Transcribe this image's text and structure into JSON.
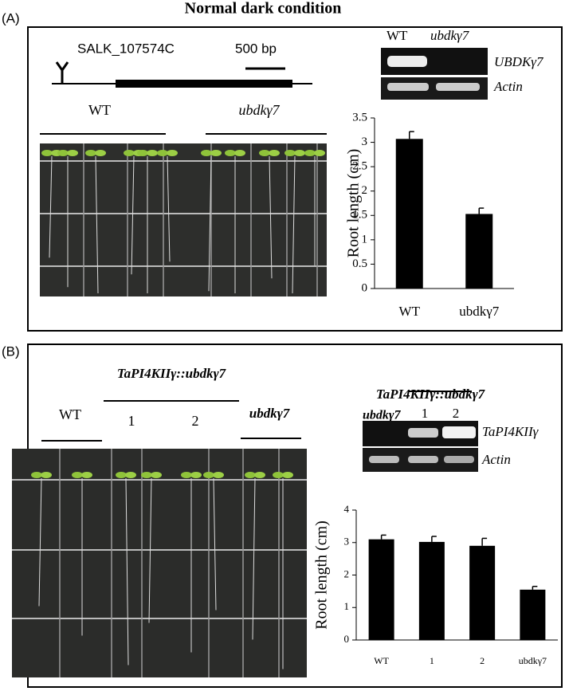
{
  "title": "Normal dark condition",
  "panel_a": {
    "label": "(A)",
    "insertion": "SALK_107574C",
    "scale": "500 bp",
    "photo_labels": [
      "WT",
      "ubdkγ7"
    ],
    "gel": {
      "lanes": [
        "WT",
        "ubdkγ7"
      ],
      "rows": [
        "UBDKγ7",
        "Actin"
      ]
    }
  },
  "panel_b": {
    "label": "(B)",
    "construct": "TaPI4KIIγ::ubdkγ7",
    "photo_labels": [
      "WT",
      "1",
      "2",
      "ubdkγ7"
    ],
    "gel": {
      "construct": "TaPI4KIIγ::ubdkγ7",
      "lanes": [
        "ubdkγ7",
        "1",
        "2"
      ],
      "rows": [
        "TaPI4KIIγ",
        "Actin"
      ]
    }
  },
  "chart_data": [
    {
      "type": "bar",
      "y_label": "Root length (cm)",
      "categories": [
        "WT",
        "ubdkγ7"
      ],
      "values": [
        3.07,
        1.53
      ],
      "errors": [
        0.15,
        0.12
      ],
      "color": "#000000",
      "ylim": [
        0,
        3.5
      ],
      "yticks": [
        0,
        0.5,
        1,
        1.5,
        2,
        2.5,
        3,
        3.5
      ]
    },
    {
      "type": "bar",
      "y_label": "Root length (cm)",
      "categories": [
        "WT",
        "1",
        "2",
        "ubdkγ7"
      ],
      "values": [
        3.1,
        3.02,
        2.9,
        1.55
      ],
      "errors": [
        0.13,
        0.17,
        0.23,
        0.1
      ],
      "color": "#000000",
      "ylim": [
        0,
        4
      ],
      "yticks": [
        0,
        1,
        2,
        3,
        4
      ]
    }
  ]
}
